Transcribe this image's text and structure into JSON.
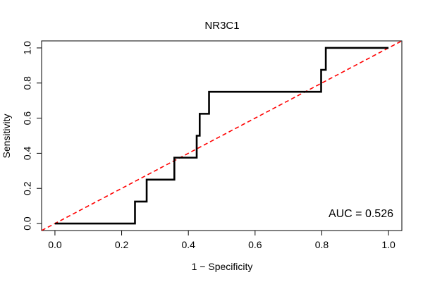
{
  "chart_data": {
    "type": "line",
    "title": "NR3C1",
    "xlabel": "1 − Specificity",
    "ylabel": "Sensitivity",
    "xlim": [
      -0.04,
      1.04
    ],
    "ylim": [
      -0.04,
      1.04
    ],
    "x_ticks": [
      0.0,
      0.2,
      0.4,
      0.6,
      0.8,
      1.0
    ],
    "x_tick_labels": [
      "0.0",
      "0.2",
      "0.4",
      "0.6",
      "0.8",
      "1.0"
    ],
    "y_ticks": [
      0.0,
      0.2,
      0.4,
      0.6,
      0.8,
      1.0
    ],
    "y_tick_labels": [
      "0.0",
      "0.2",
      "0.4",
      "0.6",
      "0.8",
      "1.0"
    ],
    "grid": false,
    "series": [
      {
        "color": "#000000",
        "style": "solid",
        "points": [
          [
            0.0,
            0.0
          ],
          [
            0.24,
            0.0
          ],
          [
            0.24,
            0.125
          ],
          [
            0.275,
            0.125
          ],
          [
            0.275,
            0.25
          ],
          [
            0.358,
            0.25
          ],
          [
            0.358,
            0.375
          ],
          [
            0.425,
            0.375
          ],
          [
            0.425,
            0.5
          ],
          [
            0.434,
            0.5
          ],
          [
            0.434,
            0.625
          ],
          [
            0.462,
            0.625
          ],
          [
            0.462,
            0.75
          ],
          [
            0.798,
            0.75
          ],
          [
            0.798,
            0.875
          ],
          [
            0.812,
            0.875
          ],
          [
            0.812,
            1.0
          ],
          [
            1.0,
            1.0
          ]
        ]
      },
      {
        "color": "#ff0000",
        "style": "dashed",
        "points": [
          [
            -0.04,
            -0.04
          ],
          [
            1.04,
            1.04
          ]
        ]
      }
    ],
    "annotation": "AUC = 0.526"
  }
}
